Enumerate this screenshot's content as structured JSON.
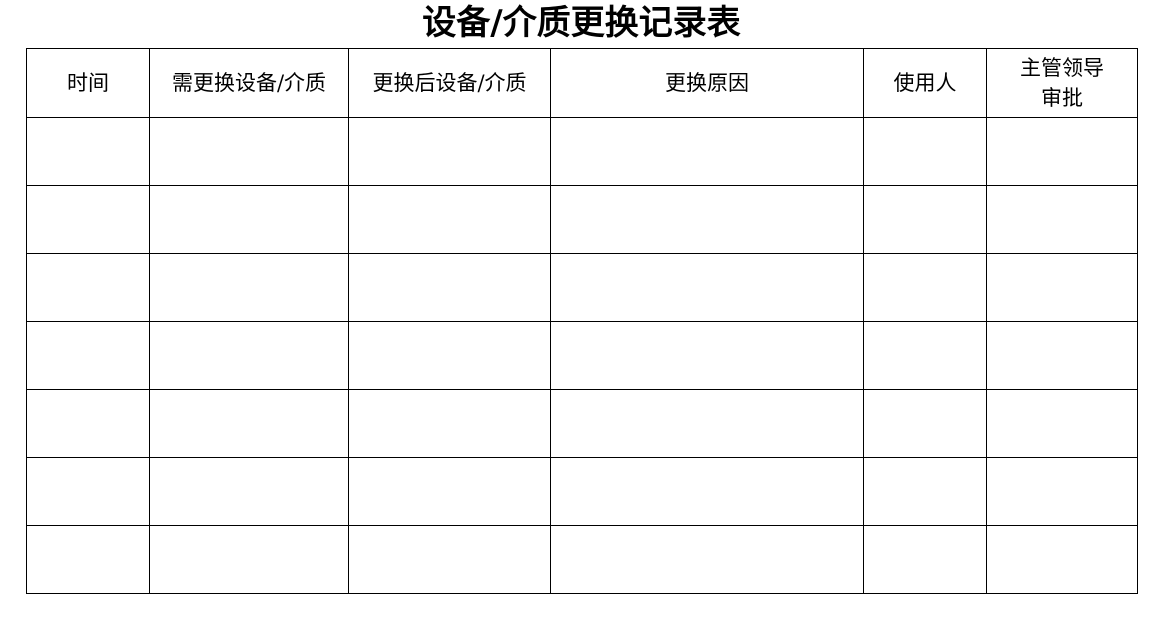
{
  "title": "设备/介质更换记录表",
  "table": {
    "headers": [
      "时间",
      "需更换设备/介质",
      "更换后设备/介质",
      "更换原因",
      "使用人",
      "主管领导审批"
    ],
    "header_lines": {
      "approval_line1": "主管领导",
      "approval_line2": "审批"
    },
    "rows": [
      [
        "",
        "",
        "",
        "",
        "",
        ""
      ],
      [
        "",
        "",
        "",
        "",
        "",
        ""
      ],
      [
        "",
        "",
        "",
        "",
        "",
        ""
      ],
      [
        "",
        "",
        "",
        "",
        "",
        ""
      ],
      [
        "",
        "",
        "",
        "",
        "",
        ""
      ],
      [
        "",
        "",
        "",
        "",
        "",
        ""
      ],
      [
        "",
        "",
        "",
        "",
        "",
        ""
      ]
    ]
  }
}
